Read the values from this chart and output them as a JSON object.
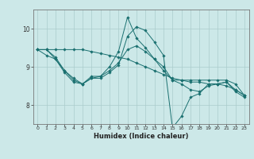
{
  "title": "",
  "xlabel": "Humidex (Indice chaleur)",
  "bg_color": "#cce8e8",
  "grid_color": "#aacccc",
  "line_color": "#1a7070",
  "xlim": [
    -0.5,
    23.5
  ],
  "ylim": [
    7.5,
    10.5
  ],
  "yticks": [
    8,
    9,
    10
  ],
  "xticks": [
    0,
    1,
    2,
    3,
    4,
    5,
    6,
    7,
    8,
    9,
    10,
    11,
    12,
    13,
    14,
    15,
    16,
    17,
    18,
    19,
    20,
    21,
    22,
    23
  ],
  "lines": [
    {
      "x": [
        0,
        1,
        2,
        3,
        4,
        5,
        6,
        7,
        8,
        9,
        10,
        11,
        12,
        13,
        14,
        15,
        16,
        17,
        18,
        19,
        20,
        21,
        22,
        23
      ],
      "y": [
        9.45,
        9.45,
        9.25,
        8.9,
        8.65,
        8.55,
        8.75,
        8.75,
        9.0,
        9.4,
        10.3,
        9.75,
        9.5,
        9.2,
        8.9,
        8.65,
        8.65,
        8.65,
        8.65,
        8.65,
        8.65,
        8.65,
        8.55,
        8.25
      ]
    },
    {
      "x": [
        0,
        1,
        2,
        3,
        4,
        5,
        6,
        7,
        8,
        9,
        10,
        11,
        12,
        13,
        14,
        15,
        16,
        17,
        18,
        19,
        20,
        21,
        22,
        23
      ],
      "y": [
        9.45,
        9.3,
        9.2,
        8.9,
        8.7,
        8.55,
        8.7,
        8.75,
        8.9,
        9.1,
        9.45,
        9.55,
        9.4,
        9.2,
        9.0,
        8.65,
        8.55,
        8.4,
        8.35,
        8.5,
        8.55,
        8.6,
        8.4,
        8.25
      ]
    },
    {
      "x": [
        0,
        1,
        2,
        3,
        4,
        5,
        6,
        7,
        8,
        9,
        10,
        11,
        12,
        13,
        14,
        15,
        16,
        17,
        18,
        19,
        20,
        21,
        22,
        23
      ],
      "y": [
        9.45,
        9.45,
        9.2,
        8.85,
        8.6,
        8.55,
        8.7,
        8.7,
        8.85,
        9.05,
        9.8,
        10.05,
        9.95,
        9.65,
        9.3,
        7.4,
        7.7,
        8.2,
        8.3,
        8.55,
        8.55,
        8.6,
        8.35,
        8.2
      ]
    },
    {
      "x": [
        0,
        1,
        2,
        3,
        4,
        5,
        6,
        7,
        8,
        9,
        10,
        11,
        12,
        13,
        14,
        15,
        16,
        17,
        18,
        19,
        20,
        21,
        22,
        23
      ],
      "y": [
        9.45,
        9.45,
        9.45,
        9.45,
        9.45,
        9.45,
        9.4,
        9.35,
        9.3,
        9.25,
        9.2,
        9.1,
        9.0,
        8.9,
        8.8,
        8.7,
        8.65,
        8.6,
        8.6,
        8.55,
        8.55,
        8.5,
        8.4,
        8.25
      ]
    }
  ]
}
